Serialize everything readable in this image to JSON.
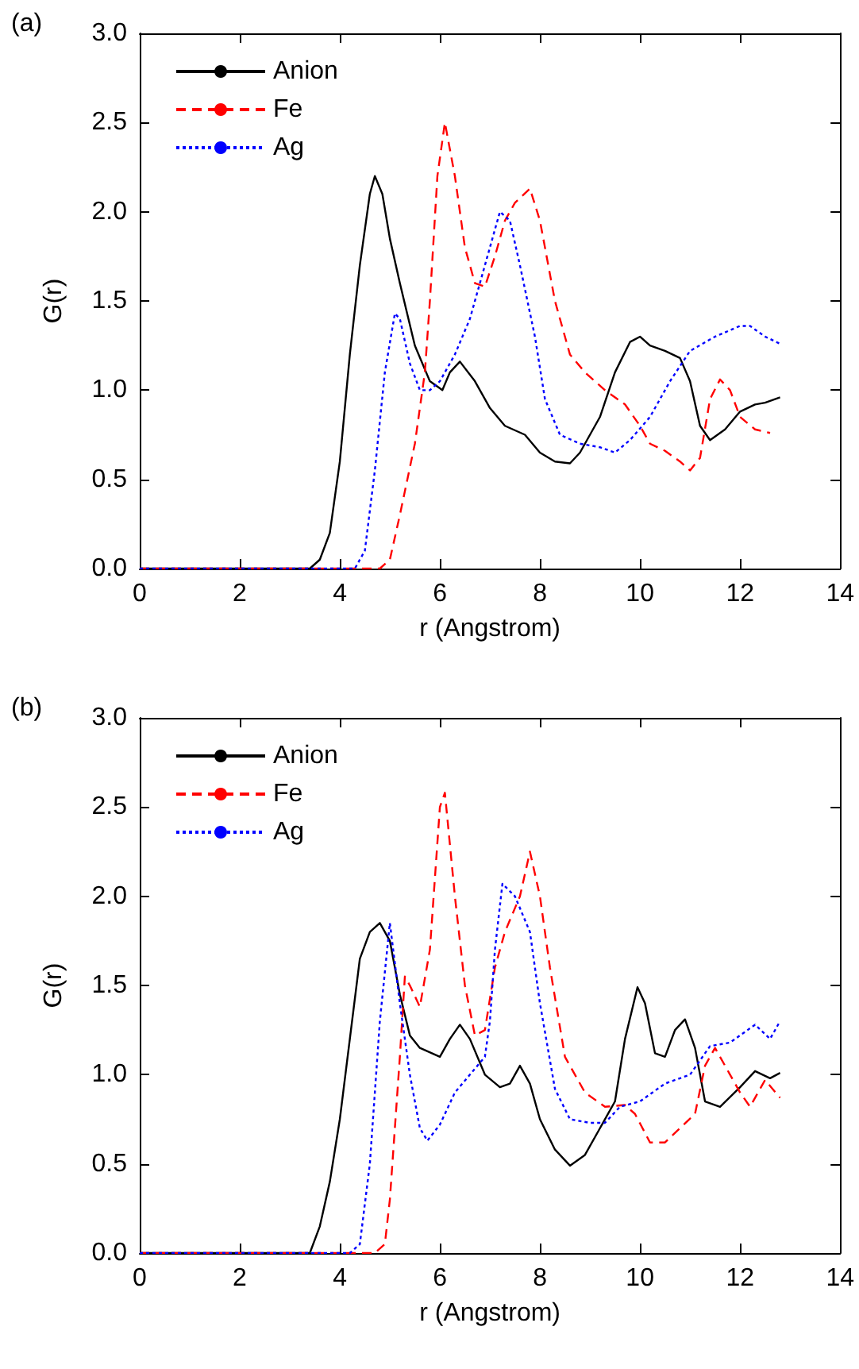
{
  "chart_data": [
    {
      "type": "line",
      "title": "(a)",
      "xlabel": "r (Angstrom)",
      "ylabel": "G(r)",
      "xlim": [
        0,
        14
      ],
      "xticks": [
        0,
        2,
        4,
        6,
        8,
        10,
        12,
        14
      ],
      "ylim": [
        0,
        3
      ],
      "yticks": [
        {
          "value": 0,
          "label": "0.0"
        },
        {
          "value": 0.5,
          "label": "0.5"
        },
        {
          "value": 1,
          "label": "1.0"
        },
        {
          "value": 1.5,
          "label": "1.5"
        },
        {
          "value": 2,
          "label": "2.0"
        },
        {
          "value": 2.5,
          "label": "2.5"
        },
        {
          "value": 3,
          "label": "3.0"
        }
      ],
      "legend": "top left",
      "marker": "none",
      "grid": false,
      "series": [
        {
          "name": "Anion",
          "color": "#000000",
          "line_style": "solid",
          "x": [
            0,
            3.4,
            3.6,
            3.8,
            4.0,
            4.2,
            4.4,
            4.6,
            4.7,
            4.85,
            5.0,
            5.2,
            5.5,
            5.8,
            6.05,
            6.2,
            6.4,
            6.7,
            7.0,
            7.3,
            7.7,
            8.0,
            8.3,
            8.6,
            8.8,
            9.2,
            9.5,
            9.8,
            10.0,
            10.2,
            10.5,
            10.8,
            11.0,
            11.2,
            11.4,
            11.7,
            12.0,
            12.3,
            12.5,
            12.8
          ],
          "values": [
            0,
            0,
            0.05,
            0.2,
            0.6,
            1.2,
            1.7,
            2.1,
            2.2,
            2.1,
            1.85,
            1.6,
            1.25,
            1.05,
            1.0,
            1.1,
            1.16,
            1.05,
            0.9,
            0.8,
            0.75,
            0.65,
            0.6,
            0.59,
            0.65,
            0.85,
            1.1,
            1.27,
            1.3,
            1.25,
            1.22,
            1.18,
            1.05,
            0.8,
            0.72,
            0.78,
            0.88,
            0.92,
            0.93,
            0.96
          ]
        },
        {
          "name": "Fe",
          "color": "#ff0000",
          "line_style": "dashed",
          "x": [
            0,
            4.8,
            5.0,
            5.2,
            5.5,
            5.7,
            5.8,
            5.95,
            6.1,
            6.3,
            6.5,
            6.7,
            6.9,
            7.1,
            7.3,
            7.5,
            7.8,
            8.0,
            8.3,
            8.6,
            8.9,
            9.3,
            9.7,
            10.0,
            10.2,
            10.5,
            10.8,
            11.0,
            11.2,
            11.4,
            11.6,
            11.8,
            12.0,
            12.3,
            12.6
          ],
          "values": [
            0,
            0,
            0.05,
            0.3,
            0.7,
            1.1,
            1.5,
            2.2,
            2.5,
            2.2,
            1.8,
            1.6,
            1.58,
            1.75,
            1.95,
            2.05,
            2.13,
            1.95,
            1.5,
            1.2,
            1.1,
            1.0,
            0.92,
            0.8,
            0.7,
            0.66,
            0.6,
            0.55,
            0.62,
            0.95,
            1.06,
            1.0,
            0.85,
            0.78,
            0.76
          ]
        },
        {
          "name": "Ag",
          "color": "#0000ff",
          "line_style": "dotted",
          "x": [
            0,
            4.3,
            4.5,
            4.7,
            4.9,
            5.1,
            5.2,
            5.4,
            5.6,
            5.8,
            6.0,
            6.3,
            6.6,
            6.9,
            7.2,
            7.4,
            7.6,
            7.9,
            8.1,
            8.4,
            8.8,
            9.2,
            9.5,
            9.8,
            10.2,
            10.6,
            11.0,
            11.5,
            12.0,
            12.2,
            12.5,
            12.8
          ],
          "values": [
            0,
            0,
            0.1,
            0.55,
            1.1,
            1.43,
            1.4,
            1.15,
            1.0,
            1.0,
            1.05,
            1.2,
            1.4,
            1.7,
            2.0,
            1.95,
            1.7,
            1.3,
            0.95,
            0.75,
            0.7,
            0.68,
            0.65,
            0.72,
            0.85,
            1.05,
            1.22,
            1.3,
            1.36,
            1.36,
            1.3,
            1.26
          ]
        }
      ]
    },
    {
      "type": "line",
      "title": "(b)",
      "xlabel": "r (Angstrom)",
      "ylabel": "G(r)",
      "xlim": [
        0,
        14
      ],
      "xticks": [
        0,
        2,
        4,
        6,
        8,
        10,
        12,
        14
      ],
      "ylim": [
        0,
        3
      ],
      "yticks": [
        {
          "value": 0,
          "label": "0.0"
        },
        {
          "value": 0.5,
          "label": "0.5"
        },
        {
          "value": 1,
          "label": "1.0"
        },
        {
          "value": 1.5,
          "label": "1.5"
        },
        {
          "value": 2,
          "label": "2.0"
        },
        {
          "value": 2.5,
          "label": "2.5"
        },
        {
          "value": 3,
          "label": "3.0"
        }
      ],
      "legend": "top left",
      "marker": "none",
      "grid": false,
      "series": [
        {
          "name": "Anion",
          "color": "#000000",
          "line_style": "solid",
          "x": [
            0,
            3.4,
            3.6,
            3.8,
            4.0,
            4.2,
            4.4,
            4.6,
            4.8,
            5.0,
            5.2,
            5.4,
            5.6,
            6.0,
            6.2,
            6.4,
            6.6,
            6.9,
            7.2,
            7.4,
            7.6,
            7.8,
            8.0,
            8.3,
            8.6,
            8.9,
            9.2,
            9.5,
            9.7,
            9.95,
            10.1,
            10.3,
            10.5,
            10.7,
            10.9,
            11.1,
            11.3,
            11.6,
            12.0,
            12.3,
            12.6,
            12.8
          ],
          "values": [
            0,
            0,
            0.15,
            0.4,
            0.75,
            1.2,
            1.65,
            1.8,
            1.85,
            1.75,
            1.45,
            1.22,
            1.15,
            1.1,
            1.2,
            1.28,
            1.2,
            1.0,
            0.93,
            0.95,
            1.05,
            0.95,
            0.75,
            0.58,
            0.49,
            0.55,
            0.7,
            0.85,
            1.2,
            1.49,
            1.4,
            1.12,
            1.1,
            1.25,
            1.31,
            1.15,
            0.85,
            0.82,
            0.93,
            1.02,
            0.98,
            1.01
          ]
        },
        {
          "name": "Fe",
          "color": "#ff0000",
          "line_style": "dashed",
          "x": [
            0,
            4.7,
            4.9,
            5.0,
            5.2,
            5.3,
            5.4,
            5.6,
            5.8,
            6.0,
            6.1,
            6.3,
            6.5,
            6.7,
            6.9,
            7.1,
            7.3,
            7.6,
            7.8,
            8.0,
            8.2,
            8.5,
            8.9,
            9.3,
            9.7,
            9.9,
            10.2,
            10.5,
            10.8,
            11.1,
            11.3,
            11.5,
            11.8,
            12.0,
            12.2,
            12.5,
            12.8
          ],
          "values": [
            0,
            0,
            0.05,
            0.3,
            1.1,
            1.55,
            1.5,
            1.38,
            1.7,
            2.5,
            2.58,
            2.0,
            1.5,
            1.22,
            1.25,
            1.6,
            1.8,
            2.0,
            2.25,
            2.0,
            1.6,
            1.1,
            0.9,
            0.82,
            0.83,
            0.78,
            0.62,
            0.62,
            0.7,
            0.78,
            1.05,
            1.15,
            1.0,
            0.9,
            0.82,
            0.97,
            0.87
          ]
        },
        {
          "name": "Ag",
          "color": "#0000ff",
          "line_style": "dotted",
          "x": [
            0,
            4.2,
            4.4,
            4.6,
            4.8,
            5.0,
            5.2,
            5.4,
            5.6,
            5.75,
            6.0,
            6.3,
            6.6,
            6.9,
            7.0,
            7.1,
            7.25,
            7.5,
            7.8,
            8.0,
            8.3,
            8.6,
            9.0,
            9.3,
            9.6,
            10.0,
            10.5,
            11.0,
            11.4,
            11.8,
            12.3,
            12.6,
            12.8
          ],
          "values": [
            0,
            0,
            0.05,
            0.5,
            1.3,
            1.85,
            1.4,
            1.0,
            0.7,
            0.63,
            0.72,
            0.9,
            1.0,
            1.1,
            1.3,
            1.7,
            2.07,
            2.0,
            1.8,
            1.4,
            0.92,
            0.75,
            0.73,
            0.73,
            0.82,
            0.85,
            0.95,
            1.0,
            1.16,
            1.18,
            1.28,
            1.2,
            1.3
          ]
        }
      ]
    }
  ]
}
